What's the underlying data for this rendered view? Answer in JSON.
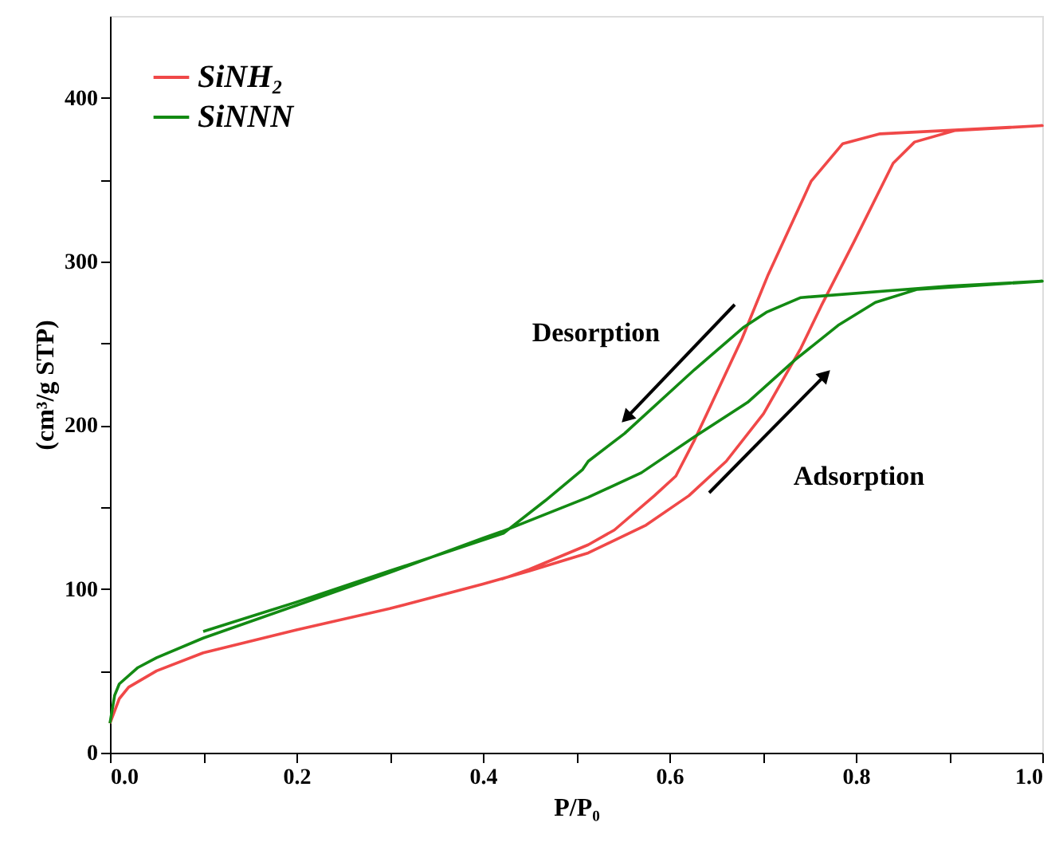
{
  "chart_data": {
    "type": "line",
    "xlabel": "P/P₀",
    "ylabel": "(cm³/g STP)",
    "xlim": [
      0,
      1
    ],
    "ylim": [
      0,
      450
    ],
    "xticks": [
      {
        "value": 0,
        "label": "0.0"
      },
      {
        "value": 0.1,
        "label": null
      },
      {
        "value": 0.2,
        "label": "0.2"
      },
      {
        "value": 0.3,
        "label": null
      },
      {
        "value": 0.4,
        "label": "0.4"
      },
      {
        "value": 0.5,
        "label": null
      },
      {
        "value": 0.6,
        "label": "0.6"
      },
      {
        "value": 0.7,
        "label": null
      },
      {
        "value": 0.8,
        "label": "0.8"
      },
      {
        "value": 0.9,
        "label": null
      },
      {
        "value": 1,
        "label": "1.0"
      }
    ],
    "yticks": [
      0,
      {
        "value": 50,
        "label": null
      },
      100,
      {
        "value": 150,
        "label": null
      },
      200,
      {
        "value": 250,
        "label": null
      },
      300,
      {
        "value": 350,
        "label": null
      },
      400
    ],
    "grid": false,
    "legend": "top left",
    "line_style": "solid",
    "marker": "none",
    "series": [
      {
        "name": "SiNH₂",
        "color": "#f04848",
        "x": [
          0,
          0.01,
          0.02,
          0.05,
          0.1,
          0.2,
          0.3,
          0.4,
          0.45,
          0.513,
          0.575,
          0.621,
          0.661,
          0.701,
          0.741,
          0.763,
          0.798,
          0.84,
          0.863,
          0.906,
          1.0,
          0.826,
          0.786,
          0.752,
          0.744,
          0.706,
          0.678,
          0.646,
          0.627,
          0.607,
          0.584,
          0.541,
          0.513,
          0.45,
          0.42
        ],
        "values": [
          18,
          33,
          40,
          50,
          61,
          75,
          88,
          103,
          111,
          122,
          139,
          157,
          178,
          207,
          247,
          273,
          312,
          360,
          373,
          380,
          383,
          378,
          372,
          349,
          339,
          292,
          253,
          214,
          191,
          169,
          157,
          136,
          127,
          112,
          106
        ]
      },
      {
        "name": "SiNNN",
        "color": "#138a13",
        "x": [
          0,
          0.005,
          0.01,
          0.03,
          0.05,
          0.1,
          0.2,
          0.3,
          0.4,
          0.42,
          0.513,
          0.57,
          0.627,
          0.684,
          0.735,
          0.781,
          0.821,
          0.866,
          1.0,
          0.9,
          0.741,
          0.704,
          0.68,
          0.627,
          0.552,
          0.513,
          0.507,
          0.467,
          0.422,
          0.3,
          0.2,
          0.1
        ],
        "values": [
          18,
          35,
          42,
          52,
          58,
          70,
          90,
          110,
          131,
          135,
          156,
          171,
          193,
          214,
          240,
          261,
          275,
          283,
          288,
          285,
          278,
          269,
          260,
          234,
          195,
          178,
          173,
          154,
          134,
          111,
          92,
          74
        ]
      }
    ],
    "annotations": [
      "Desorption",
      "Adsorption"
    ]
  }
}
